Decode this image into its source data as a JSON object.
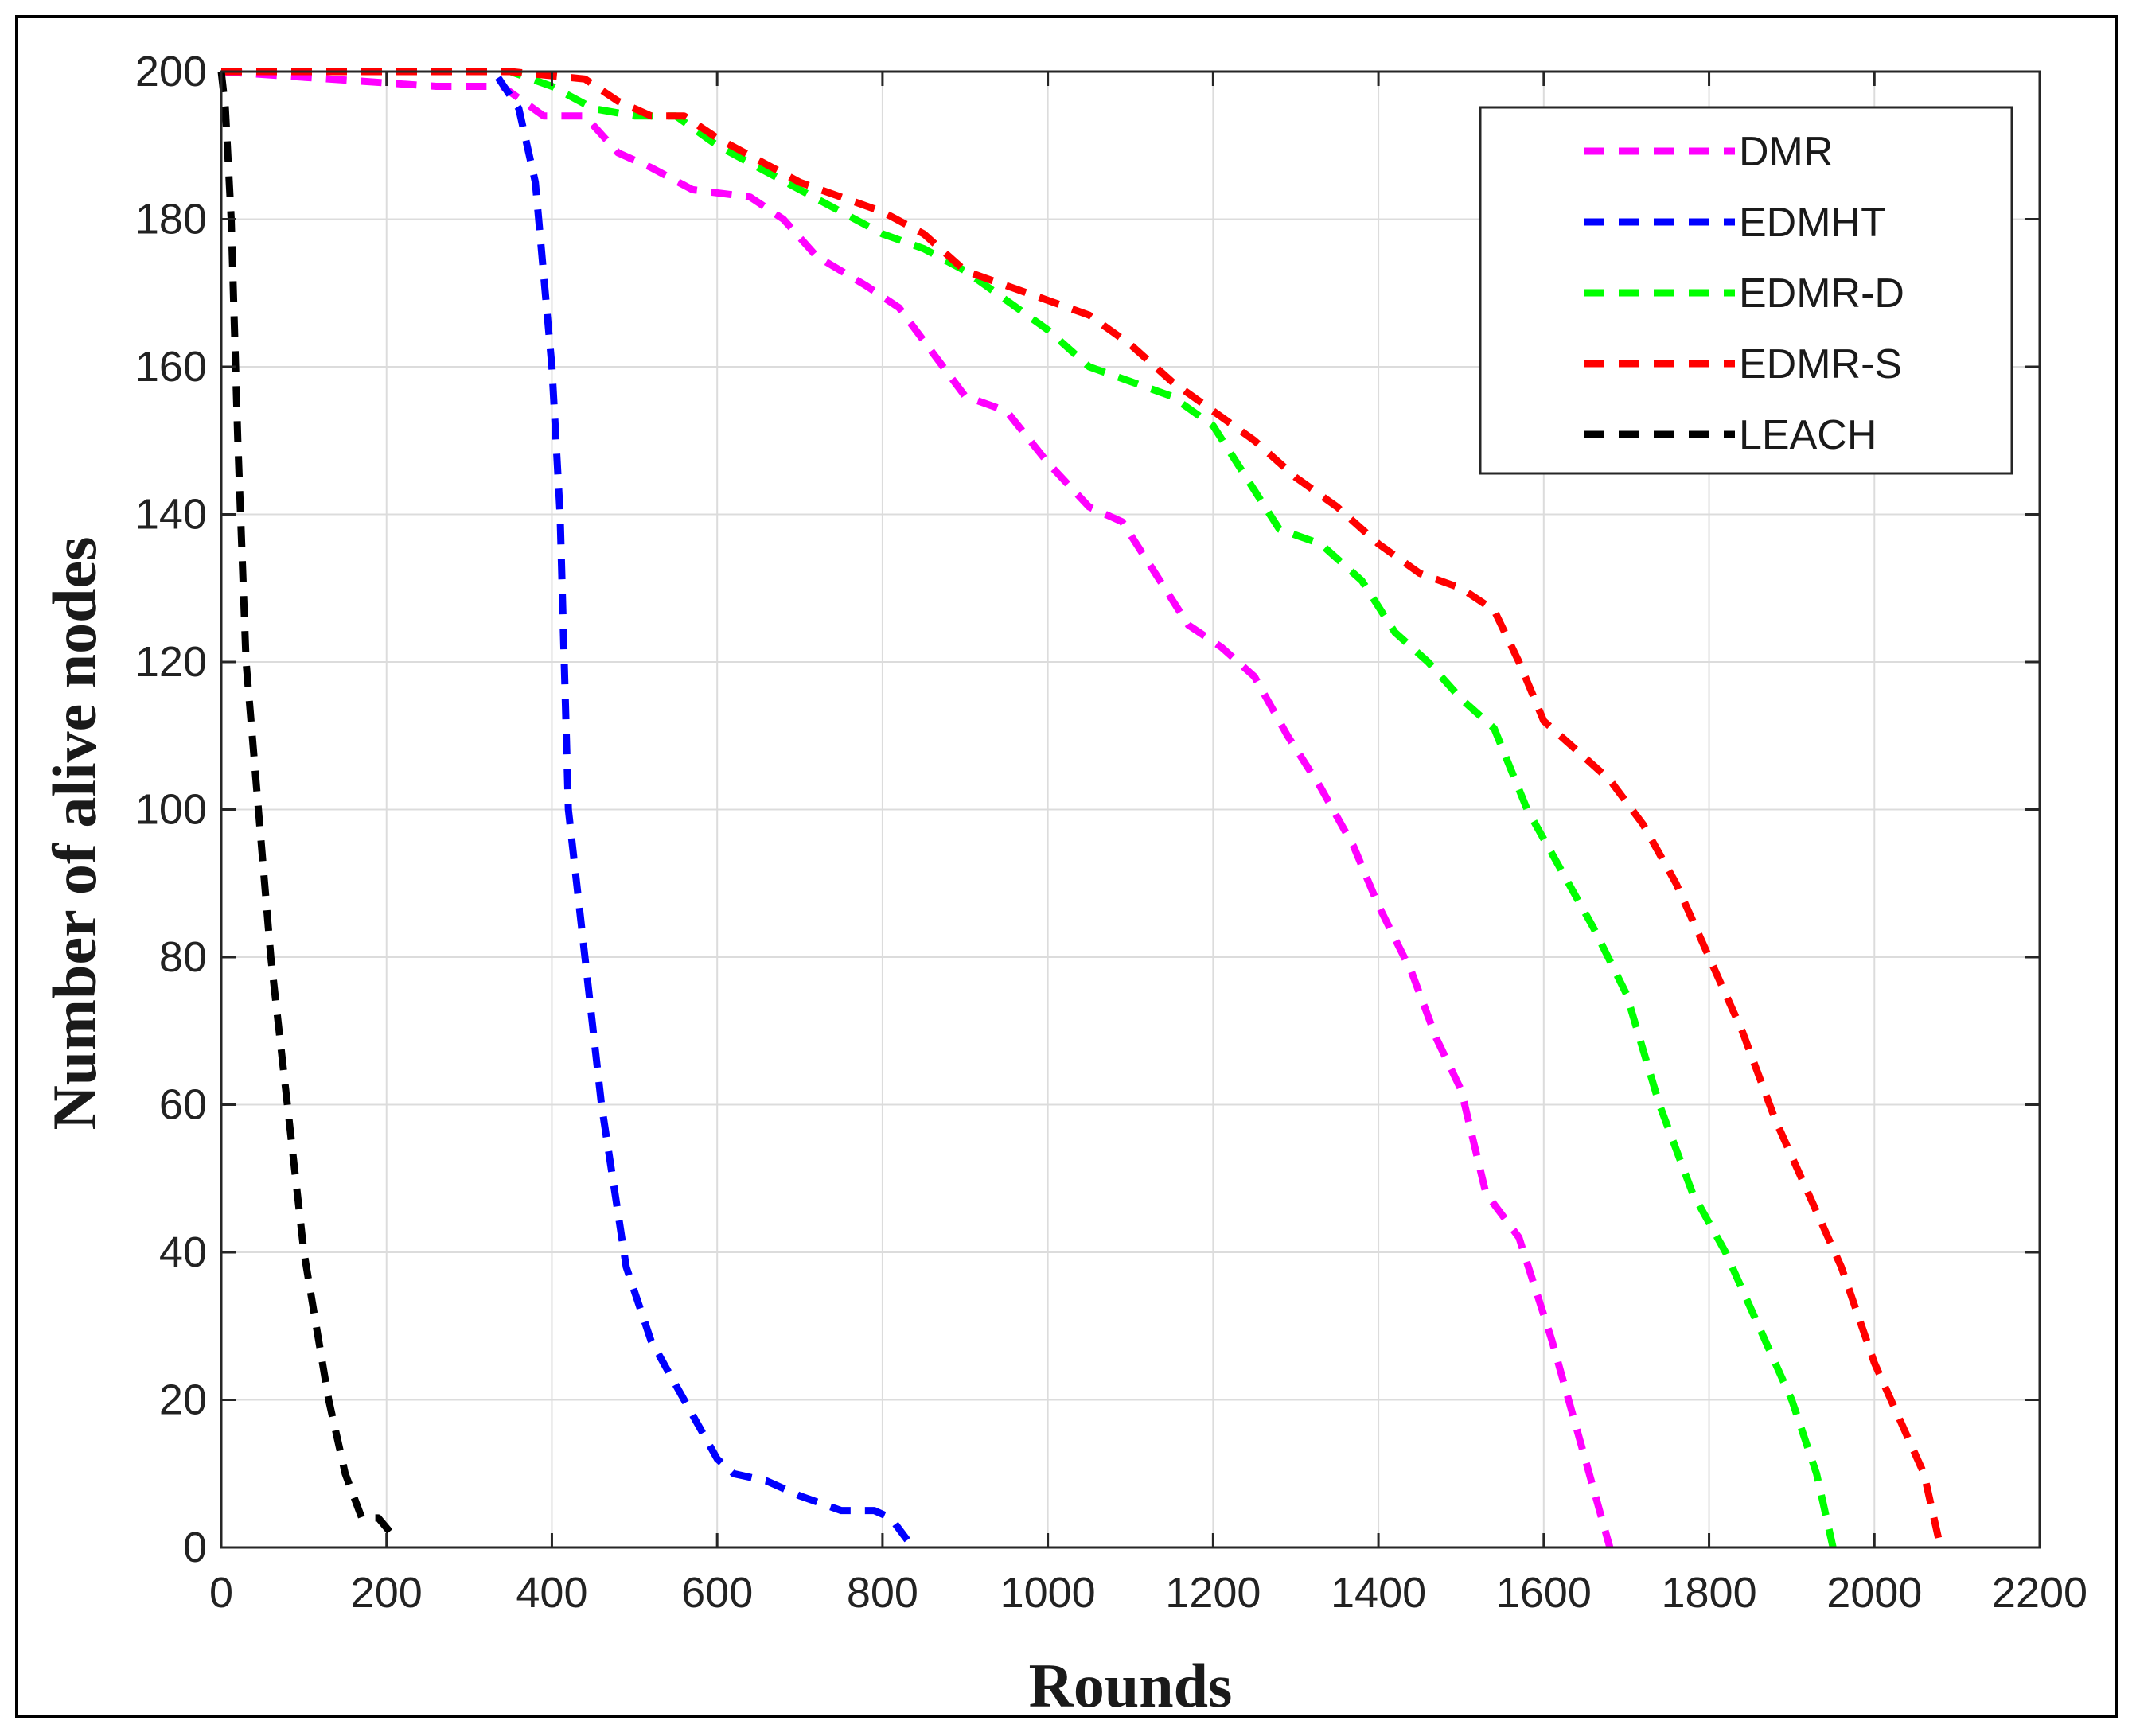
{
  "chart_data": {
    "type": "line",
    "title": "",
    "xlabel": "Rounds",
    "ylabel": "Number of alive nodes",
    "xlim": [
      0,
      2200
    ],
    "ylim": [
      0,
      200
    ],
    "xticks": [
      0,
      200,
      400,
      600,
      800,
      1000,
      1200,
      1400,
      1600,
      1800,
      2000,
      2200
    ],
    "yticks": [
      0,
      20,
      40,
      60,
      80,
      100,
      120,
      140,
      160,
      180,
      200
    ],
    "grid": true,
    "legend_position": "top-right",
    "series": [
      {
        "name": "DMR",
        "color": "#ff00ff",
        "x": [
          0,
          260,
          340,
          390,
          440,
          480,
          520,
          570,
          640,
          680,
          720,
          780,
          820,
          860,
          900,
          950,
          1000,
          1050,
          1090,
          1130,
          1170,
          1210,
          1250,
          1290,
          1330,
          1370,
          1400,
          1440,
          1470,
          1500,
          1530,
          1570,
          1610,
          1650,
          1680
        ],
        "y": [
          200,
          198,
          198,
          194,
          194,
          189,
          187,
          184,
          183,
          180,
          175,
          171,
          168,
          162,
          156,
          154,
          147,
          141,
          139,
          132,
          125,
          122,
          118,
          110,
          103,
          95,
          87,
          78,
          69,
          62,
          48,
          42,
          28,
          12,
          0
        ]
      },
      {
        "name": "EDMHT",
        "color": "#0000ff",
        "x": [
          0,
          330,
          360,
          380,
          400,
          410,
          420,
          440,
          460,
          490,
          520,
          560,
          600,
          620,
          660,
          700,
          750,
          790,
          810,
          830
        ],
        "y": [
          200,
          200,
          195,
          185,
          160,
          140,
          100,
          80,
          60,
          38,
          28,
          20,
          12,
          10,
          9,
          7,
          5,
          5,
          4,
          1
        ]
      },
      {
        "name": "EDMR-D",
        "color": "#00ff00",
        "x": [
          0,
          350,
          400,
          450,
          500,
          550,
          600,
          650,
          700,
          750,
          800,
          850,
          900,
          950,
          1000,
          1050,
          1100,
          1150,
          1200,
          1240,
          1280,
          1330,
          1380,
          1420,
          1460,
          1500,
          1540,
          1580,
          1620,
          1660,
          1700,
          1740,
          1780,
          1820,
          1860,
          1900,
          1930,
          1950
        ],
        "y": [
          200,
          200,
          198,
          195,
          194,
          194,
          190,
          187,
          184,
          181,
          178,
          176,
          173,
          169,
          165,
          160,
          158,
          156,
          152,
          145,
          138,
          136,
          131,
          124,
          120,
          115,
          111,
          100,
          92,
          84,
          75,
          60,
          48,
          40,
          30,
          20,
          10,
          0
        ]
      },
      {
        "name": "EDMR-S",
        "color": "#ff0000",
        "x": [
          0,
          350,
          440,
          480,
          520,
          560,
          600,
          650,
          700,
          750,
          800,
          850,
          900,
          950,
          1000,
          1050,
          1100,
          1150,
          1200,
          1250,
          1300,
          1350,
          1400,
          1450,
          1500,
          1540,
          1570,
          1600,
          1640,
          1680,
          1720,
          1760,
          1800,
          1840,
          1880,
          1920,
          1960,
          2000,
          2040,
          2060,
          2080
        ],
        "y": [
          200,
          200,
          199,
          196,
          194,
          194,
          191,
          188,
          185,
          183,
          181,
          178,
          173,
          171,
          169,
          167,
          163,
          158,
          154,
          150,
          145,
          141,
          136,
          132,
          130,
          127,
          120,
          112,
          108,
          104,
          98,
          90,
          80,
          70,
          58,
          48,
          38,
          25,
          15,
          10,
          0
        ]
      },
      {
        "name": "LEACH",
        "color": "#000000",
        "x": [
          0,
          5,
          12,
          20,
          30,
          45,
          60,
          80,
          100,
          115,
          130,
          150,
          170,
          190,
          205,
          210
        ],
        "y": [
          200,
          195,
          180,
          150,
          120,
          100,
          80,
          60,
          40,
          30,
          20,
          10,
          4,
          4,
          2,
          1
        ]
      }
    ]
  }
}
